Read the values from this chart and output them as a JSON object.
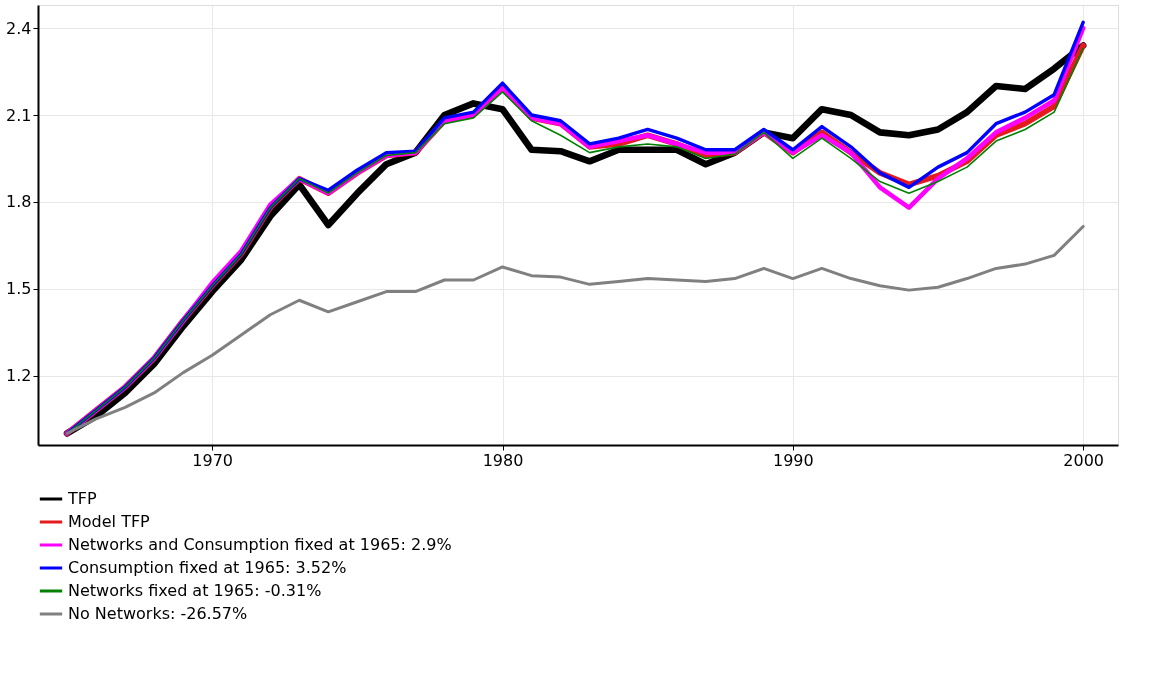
{
  "chart_data": {
    "type": "line",
    "x": [
      1965,
      1966,
      1967,
      1968,
      1969,
      1970,
      1971,
      1972,
      1973,
      1974,
      1975,
      1976,
      1977,
      1978,
      1979,
      1980,
      1981,
      1982,
      1983,
      1984,
      1985,
      1986,
      1987,
      1988,
      1989,
      1990,
      1991,
      1992,
      1993,
      1994,
      1995,
      1996,
      1997,
      1998,
      1999,
      2000
    ],
    "series": [
      {
        "name": "TFP",
        "color": "#000000",
        "values": [
          1.0,
          1.06,
          1.14,
          1.24,
          1.37,
          1.49,
          1.6,
          1.75,
          1.86,
          1.72,
          1.83,
          1.93,
          1.97,
          2.1,
          2.14,
          2.12,
          1.98,
          1.975,
          1.94,
          1.98,
          1.98,
          1.98,
          1.93,
          1.97,
          2.04,
          2.02,
          2.12,
          2.1,
          2.04,
          2.03,
          2.05,
          2.11,
          2.2,
          2.19,
          2.26,
          2.34
        ]
      },
      {
        "name": "Model TFP",
        "color": "#e41a1c",
        "values": [
          1.0,
          1.08,
          1.16,
          1.26,
          1.39,
          1.51,
          1.62,
          1.78,
          1.88,
          1.83,
          1.9,
          1.96,
          1.97,
          2.08,
          2.1,
          2.2,
          2.09,
          2.07,
          1.99,
          2.0,
          2.03,
          2.0,
          1.96,
          1.97,
          2.04,
          1.97,
          2.04,
          1.97,
          1.9,
          1.86,
          1.89,
          1.94,
          2.03,
          2.07,
          2.13,
          2.34
        ]
      },
      {
        "name": "Networks and Consumption fixed at 1965: 2.9%",
        "color": "#ff00ff",
        "values": [
          1.0,
          1.08,
          1.16,
          1.26,
          1.39,
          1.52,
          1.63,
          1.79,
          1.88,
          1.83,
          1.9,
          1.96,
          1.97,
          2.08,
          2.1,
          2.19,
          2.09,
          2.07,
          1.99,
          2.01,
          2.03,
          2.0,
          1.97,
          1.97,
          2.04,
          1.97,
          2.03,
          1.97,
          1.85,
          1.78,
          1.88,
          1.95,
          2.04,
          2.09,
          2.15,
          2.4
        ]
      },
      {
        "name": "Consumption fixed at 1965: 3.52%",
        "color": "#0000ff",
        "values": [
          1.0,
          1.08,
          1.16,
          1.26,
          1.39,
          1.51,
          1.62,
          1.78,
          1.88,
          1.84,
          1.91,
          1.97,
          1.975,
          2.09,
          2.11,
          2.21,
          2.1,
          2.08,
          2.0,
          2.02,
          2.05,
          2.02,
          1.98,
          1.98,
          2.05,
          1.98,
          2.06,
          1.99,
          1.9,
          1.85,
          1.92,
          1.97,
          2.07,
          2.11,
          2.17,
          2.42
        ]
      },
      {
        "name": "Networks fixed at 1965: -0.31%",
        "color": "#008000",
        "values": [
          1.0,
          1.08,
          1.16,
          1.26,
          1.39,
          1.51,
          1.62,
          1.78,
          1.88,
          1.83,
          1.9,
          1.96,
          1.97,
          2.07,
          2.09,
          2.18,
          2.08,
          2.03,
          1.97,
          1.99,
          2.0,
          1.99,
          1.95,
          1.965,
          2.04,
          1.95,
          2.02,
          1.95,
          1.87,
          1.83,
          1.87,
          1.92,
          2.01,
          2.05,
          2.11,
          2.33
        ]
      },
      {
        "name": "No Networks: -26.57%",
        "color": "#808080",
        "values": [
          1.0,
          1.05,
          1.09,
          1.14,
          1.21,
          1.27,
          1.34,
          1.41,
          1.46,
          1.42,
          1.455,
          1.49,
          1.49,
          1.53,
          1.53,
          1.575,
          1.545,
          1.54,
          1.515,
          1.525,
          1.535,
          1.53,
          1.525,
          1.535,
          1.57,
          1.535,
          1.57,
          1.535,
          1.51,
          1.495,
          1.505,
          1.535,
          1.57,
          1.585,
          1.615,
          1.715
        ]
      }
    ],
    "xlim": [
      1964,
      2001.2
    ],
    "xticks": [
      1970,
      1980,
      1990,
      2000
    ],
    "ylim": [
      0.96,
      2.48
    ],
    "yticks": [
      1.2,
      1.5,
      1.8,
      2.1,
      2.4
    ],
    "grid": true,
    "legend": "bottom",
    "line_style": "solid"
  }
}
